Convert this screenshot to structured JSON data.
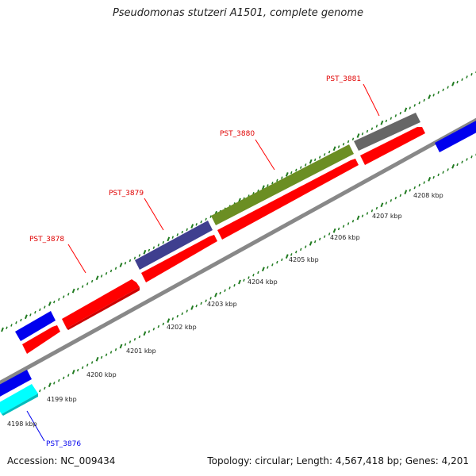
{
  "title": "Pseudomonas stutzeri A1501, complete genome",
  "accession": "Accession: NC_009434",
  "summary": "Topology: circular; Length: 4,567,418 bp; Genes: 4,201",
  "colors": {
    "forward_cds": "#ff0000",
    "blue_gene": "#0000ee",
    "cyan_gene": "#00ffff",
    "navy_gene": "#3f3f8f",
    "olive_gene": "#6b8e23",
    "gray_gene": "#666666",
    "tick_green": "#1f7a1f",
    "backbone": "#888888"
  },
  "scale_labels": [
    "4198 kbp",
    "4199 kbp",
    "4200 kbp",
    "4201 kbp",
    "4202 kbp",
    "4203 kbp",
    "4204 kbp",
    "4205 kbp",
    "4206 kbp",
    "4207 kbp",
    "4208 kbp"
  ],
  "gene_labels": {
    "pst_3876": "PST_3876",
    "pst_3878": "PST_3878",
    "pst_3879": "PST_3879",
    "pst_3880": "PST_3880",
    "pst_3881": "PST_3881"
  }
}
